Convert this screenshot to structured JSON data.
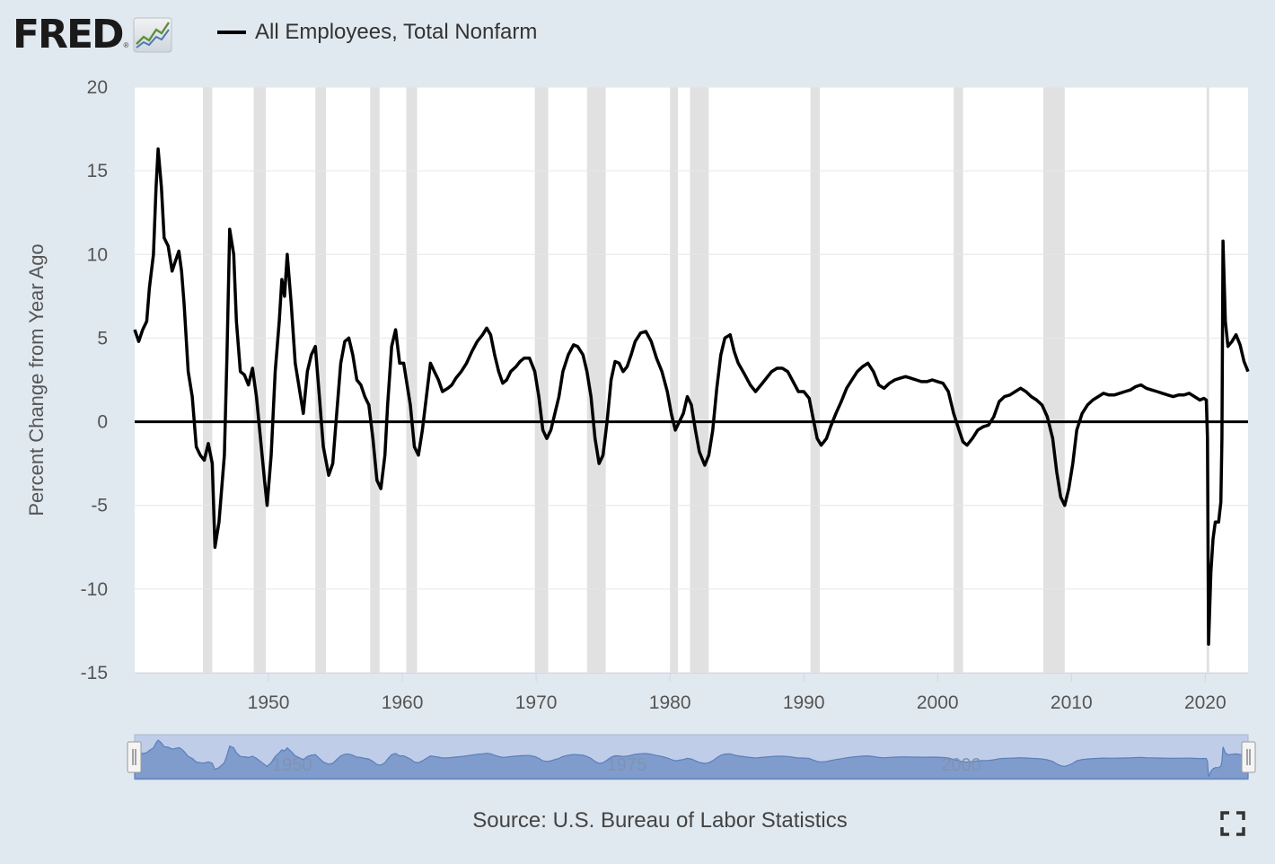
{
  "brand": {
    "logo_text": "FRED",
    "registered_mark": "®",
    "logo_icon": "line-graph-icon"
  },
  "legend": [
    {
      "label": "All Employees, Total Nonfarm",
      "color": "#000000"
    }
  ],
  "source": "Source: U.S. Bureau of Labor Statistics",
  "controls": {
    "fullscreen_icon": "fullscreen-icon"
  },
  "colors": {
    "background": "#e1e9f0",
    "plot_background": "#ffffff",
    "recession_band": "#e1e1e1",
    "series_line": "#000000",
    "navigator_fill": "#7f9ccc",
    "navigator_mask": "#c0cde8"
  },
  "chart_data": {
    "type": "line",
    "title": "",
    "xlabel": "",
    "ylabel": "Percent Change from Year Ago",
    "xlim": [
      1940.0,
      2023.2
    ],
    "ylim": [
      -15,
      20
    ],
    "x_ticks": [
      1950,
      1960,
      1970,
      1980,
      1990,
      2000,
      2010,
      2020
    ],
    "y_ticks": [
      20,
      15,
      10,
      5,
      0,
      -5,
      -10,
      -15
    ],
    "grid": true,
    "legend_position": "top",
    "zero_line": 0,
    "recessions": [
      [
        1945.1,
        1945.8
      ],
      [
        1948.9,
        1949.8
      ],
      [
        1953.5,
        1954.3
      ],
      [
        1957.6,
        1958.3
      ],
      [
        1960.3,
        1961.1
      ],
      [
        1969.9,
        1970.9
      ],
      [
        1973.8,
        1975.2
      ],
      [
        1980.0,
        1980.6
      ],
      [
        1981.5,
        1982.9
      ],
      [
        1990.5,
        1991.2
      ],
      [
        2001.2,
        2001.9
      ],
      [
        2007.9,
        2009.5
      ],
      [
        2020.1,
        2020.3
      ]
    ],
    "navigator": {
      "tick_labels": [
        1950,
        1975,
        2000
      ],
      "range": [
        1940.0,
        2023.2
      ]
    },
    "series": [
      {
        "name": "All Employees, Total Nonfarm",
        "points": [
          [
            1940.0,
            5.5
          ],
          [
            1940.3,
            4.8
          ],
          [
            1940.6,
            5.5
          ],
          [
            1940.9,
            6.0
          ],
          [
            1941.1,
            8.0
          ],
          [
            1941.4,
            10.0
          ],
          [
            1941.6,
            14.0
          ],
          [
            1941.75,
            16.3
          ],
          [
            1942.0,
            14.0
          ],
          [
            1942.2,
            11.0
          ],
          [
            1942.5,
            10.5
          ],
          [
            1942.8,
            9.0
          ],
          [
            1943.0,
            9.5
          ],
          [
            1943.3,
            10.2
          ],
          [
            1943.5,
            9.0
          ],
          [
            1943.7,
            7.0
          ],
          [
            1944.0,
            3.0
          ],
          [
            1944.3,
            1.5
          ],
          [
            1944.6,
            -1.5
          ],
          [
            1944.9,
            -2.0
          ],
          [
            1945.2,
            -2.3
          ],
          [
            1945.5,
            -1.3
          ],
          [
            1945.8,
            -2.5
          ],
          [
            1946.0,
            -7.5
          ],
          [
            1946.3,
            -6.0
          ],
          [
            1946.7,
            -2.0
          ],
          [
            1946.9,
            4.0
          ],
          [
            1947.1,
            11.5
          ],
          [
            1947.4,
            10.0
          ],
          [
            1947.6,
            6.0
          ],
          [
            1947.9,
            3.0
          ],
          [
            1948.2,
            2.8
          ],
          [
            1948.5,
            2.2
          ],
          [
            1948.8,
            3.2
          ],
          [
            1949.1,
            1.5
          ],
          [
            1949.4,
            -1.0
          ],
          [
            1949.7,
            -3.5
          ],
          [
            1949.9,
            -5.0
          ],
          [
            1950.2,
            -2.0
          ],
          [
            1950.5,
            3.0
          ],
          [
            1950.8,
            6.0
          ],
          [
            1951.0,
            8.5
          ],
          [
            1951.2,
            7.5
          ],
          [
            1951.4,
            10.0
          ],
          [
            1951.7,
            7.0
          ],
          [
            1952.0,
            3.5
          ],
          [
            1952.3,
            2.0
          ],
          [
            1952.6,
            0.5
          ],
          [
            1952.9,
            3.0
          ],
          [
            1953.2,
            4.0
          ],
          [
            1953.5,
            4.5
          ],
          [
            1953.8,
            1.5
          ],
          [
            1954.1,
            -1.5
          ],
          [
            1954.5,
            -3.2
          ],
          [
            1954.8,
            -2.5
          ],
          [
            1955.1,
            0.5
          ],
          [
            1955.4,
            3.5
          ],
          [
            1955.7,
            4.8
          ],
          [
            1956.0,
            5.0
          ],
          [
            1956.3,
            4.0
          ],
          [
            1956.6,
            2.5
          ],
          [
            1956.9,
            2.2
          ],
          [
            1957.2,
            1.5
          ],
          [
            1957.5,
            1.0
          ],
          [
            1957.8,
            -1.0
          ],
          [
            1958.1,
            -3.5
          ],
          [
            1958.4,
            -4.0
          ],
          [
            1958.7,
            -2.0
          ],
          [
            1958.9,
            1.0
          ],
          [
            1959.2,
            4.5
          ],
          [
            1959.5,
            5.5
          ],
          [
            1959.8,
            3.5
          ],
          [
            1960.1,
            3.5
          ],
          [
            1960.4,
            2.0
          ],
          [
            1960.6,
            1.0
          ],
          [
            1960.9,
            -1.5
          ],
          [
            1961.2,
            -2.0
          ],
          [
            1961.5,
            -0.5
          ],
          [
            1961.8,
            1.5
          ],
          [
            1962.1,
            3.5
          ],
          [
            1962.4,
            3.0
          ],
          [
            1962.7,
            2.5
          ],
          [
            1963.0,
            1.8
          ],
          [
            1963.4,
            2.0
          ],
          [
            1963.7,
            2.2
          ],
          [
            1964.0,
            2.6
          ],
          [
            1964.4,
            3.0
          ],
          [
            1964.8,
            3.5
          ],
          [
            1965.2,
            4.2
          ],
          [
            1965.6,
            4.8
          ],
          [
            1966.0,
            5.2
          ],
          [
            1966.3,
            5.6
          ],
          [
            1966.6,
            5.2
          ],
          [
            1966.9,
            4.0
          ],
          [
            1967.2,
            3.0
          ],
          [
            1967.5,
            2.3
          ],
          [
            1967.8,
            2.5
          ],
          [
            1968.1,
            3.0
          ],
          [
            1968.5,
            3.3
          ],
          [
            1968.8,
            3.6
          ],
          [
            1969.1,
            3.8
          ],
          [
            1969.5,
            3.8
          ],
          [
            1969.9,
            3.0
          ],
          [
            1970.2,
            1.5
          ],
          [
            1970.5,
            -0.5
          ],
          [
            1970.8,
            -1.0
          ],
          [
            1971.1,
            -0.5
          ],
          [
            1971.4,
            0.5
          ],
          [
            1971.7,
            1.5
          ],
          [
            1972.0,
            3.0
          ],
          [
            1972.4,
            4.0
          ],
          [
            1972.8,
            4.6
          ],
          [
            1973.1,
            4.5
          ],
          [
            1973.5,
            4.0
          ],
          [
            1973.8,
            3.0
          ],
          [
            1974.1,
            1.5
          ],
          [
            1974.4,
            -1.0
          ],
          [
            1974.7,
            -2.5
          ],
          [
            1975.0,
            -2.0
          ],
          [
            1975.3,
            0.0
          ],
          [
            1975.6,
            2.5
          ],
          [
            1975.9,
            3.6
          ],
          [
            1976.2,
            3.5
          ],
          [
            1976.5,
            3.0
          ],
          [
            1976.8,
            3.3
          ],
          [
            1977.1,
            4.0
          ],
          [
            1977.4,
            4.8
          ],
          [
            1977.8,
            5.3
          ],
          [
            1978.2,
            5.4
          ],
          [
            1978.6,
            4.8
          ],
          [
            1979.0,
            3.8
          ],
          [
            1979.4,
            3.0
          ],
          [
            1979.8,
            1.8
          ],
          [
            1980.1,
            0.5
          ],
          [
            1980.4,
            -0.5
          ],
          [
            1980.7,
            0.0
          ],
          [
            1981.0,
            0.5
          ],
          [
            1981.3,
            1.5
          ],
          [
            1981.6,
            1.0
          ],
          [
            1981.9,
            -0.5
          ],
          [
            1982.2,
            -1.8
          ],
          [
            1982.6,
            -2.6
          ],
          [
            1982.9,
            -2.0
          ],
          [
            1983.2,
            -0.5
          ],
          [
            1983.5,
            2.0
          ],
          [
            1983.8,
            4.0
          ],
          [
            1984.1,
            5.0
          ],
          [
            1984.5,
            5.2
          ],
          [
            1984.8,
            4.2
          ],
          [
            1985.1,
            3.5
          ],
          [
            1985.6,
            2.8
          ],
          [
            1986.0,
            2.2
          ],
          [
            1986.4,
            1.8
          ],
          [
            1986.8,
            2.2
          ],
          [
            1987.2,
            2.6
          ],
          [
            1987.6,
            3.0
          ],
          [
            1988.0,
            3.2
          ],
          [
            1988.4,
            3.2
          ],
          [
            1988.8,
            3.0
          ],
          [
            1989.2,
            2.4
          ],
          [
            1989.6,
            1.8
          ],
          [
            1990.0,
            1.8
          ],
          [
            1990.4,
            1.4
          ],
          [
            1990.7,
            0.2
          ],
          [
            1991.0,
            -1.0
          ],
          [
            1991.3,
            -1.4
          ],
          [
            1991.7,
            -1.0
          ],
          [
            1992.0,
            -0.3
          ],
          [
            1992.4,
            0.5
          ],
          [
            1992.8,
            1.2
          ],
          [
            1993.2,
            2.0
          ],
          [
            1993.6,
            2.5
          ],
          [
            1994.0,
            3.0
          ],
          [
            1994.4,
            3.3
          ],
          [
            1994.8,
            3.5
          ],
          [
            1995.2,
            3.0
          ],
          [
            1995.6,
            2.2
          ],
          [
            1996.0,
            2.0
          ],
          [
            1996.4,
            2.3
          ],
          [
            1996.8,
            2.5
          ],
          [
            1997.2,
            2.6
          ],
          [
            1997.6,
            2.7
          ],
          [
            1998.0,
            2.6
          ],
          [
            1998.4,
            2.5
          ],
          [
            1998.8,
            2.4
          ],
          [
            1999.2,
            2.4
          ],
          [
            1999.6,
            2.5
          ],
          [
            2000.0,
            2.4
          ],
          [
            2000.4,
            2.3
          ],
          [
            2000.8,
            1.8
          ],
          [
            2001.2,
            0.5
          ],
          [
            2001.6,
            -0.5
          ],
          [
            2001.9,
            -1.2
          ],
          [
            2002.2,
            -1.4
          ],
          [
            2002.6,
            -1.0
          ],
          [
            2003.0,
            -0.5
          ],
          [
            2003.4,
            -0.3
          ],
          [
            2003.8,
            -0.2
          ],
          [
            2004.2,
            0.3
          ],
          [
            2004.6,
            1.2
          ],
          [
            2005.0,
            1.5
          ],
          [
            2005.4,
            1.6
          ],
          [
            2005.8,
            1.8
          ],
          [
            2006.2,
            2.0
          ],
          [
            2006.6,
            1.8
          ],
          [
            2007.0,
            1.5
          ],
          [
            2007.4,
            1.3
          ],
          [
            2007.8,
            1.0
          ],
          [
            2008.2,
            0.3
          ],
          [
            2008.6,
            -1.0
          ],
          [
            2008.9,
            -3.0
          ],
          [
            2009.2,
            -4.5
          ],
          [
            2009.5,
            -5.0
          ],
          [
            2009.8,
            -4.0
          ],
          [
            2010.1,
            -2.5
          ],
          [
            2010.4,
            -0.5
          ],
          [
            2010.8,
            0.5
          ],
          [
            2011.2,
            1.0
          ],
          [
            2011.6,
            1.3
          ],
          [
            2012.0,
            1.5
          ],
          [
            2012.4,
            1.7
          ],
          [
            2012.8,
            1.6
          ],
          [
            2013.2,
            1.6
          ],
          [
            2013.6,
            1.7
          ],
          [
            2014.0,
            1.8
          ],
          [
            2014.4,
            1.9
          ],
          [
            2014.8,
            2.1
          ],
          [
            2015.2,
            2.2
          ],
          [
            2015.6,
            2.0
          ],
          [
            2016.0,
            1.9
          ],
          [
            2016.4,
            1.8
          ],
          [
            2016.8,
            1.7
          ],
          [
            2017.2,
            1.6
          ],
          [
            2017.6,
            1.5
          ],
          [
            2018.0,
            1.6
          ],
          [
            2018.4,
            1.6
          ],
          [
            2018.8,
            1.7
          ],
          [
            2019.2,
            1.5
          ],
          [
            2019.6,
            1.3
          ],
          [
            2019.9,
            1.4
          ],
          [
            2020.08,
            1.3
          ],
          [
            2020.17,
            -1.0
          ],
          [
            2020.25,
            -13.3
          ],
          [
            2020.42,
            -9.0
          ],
          [
            2020.58,
            -7.0
          ],
          [
            2020.75,
            -6.0
          ],
          [
            2021.0,
            -6.0
          ],
          [
            2021.17,
            -4.8
          ],
          [
            2021.25,
            -1.0
          ],
          [
            2021.33,
            10.8
          ],
          [
            2021.5,
            6.0
          ],
          [
            2021.7,
            4.5
          ],
          [
            2022.0,
            4.8
          ],
          [
            2022.3,
            5.2
          ],
          [
            2022.6,
            4.6
          ],
          [
            2022.9,
            3.6
          ],
          [
            2023.2,
            3.0
          ]
        ]
      }
    ]
  }
}
